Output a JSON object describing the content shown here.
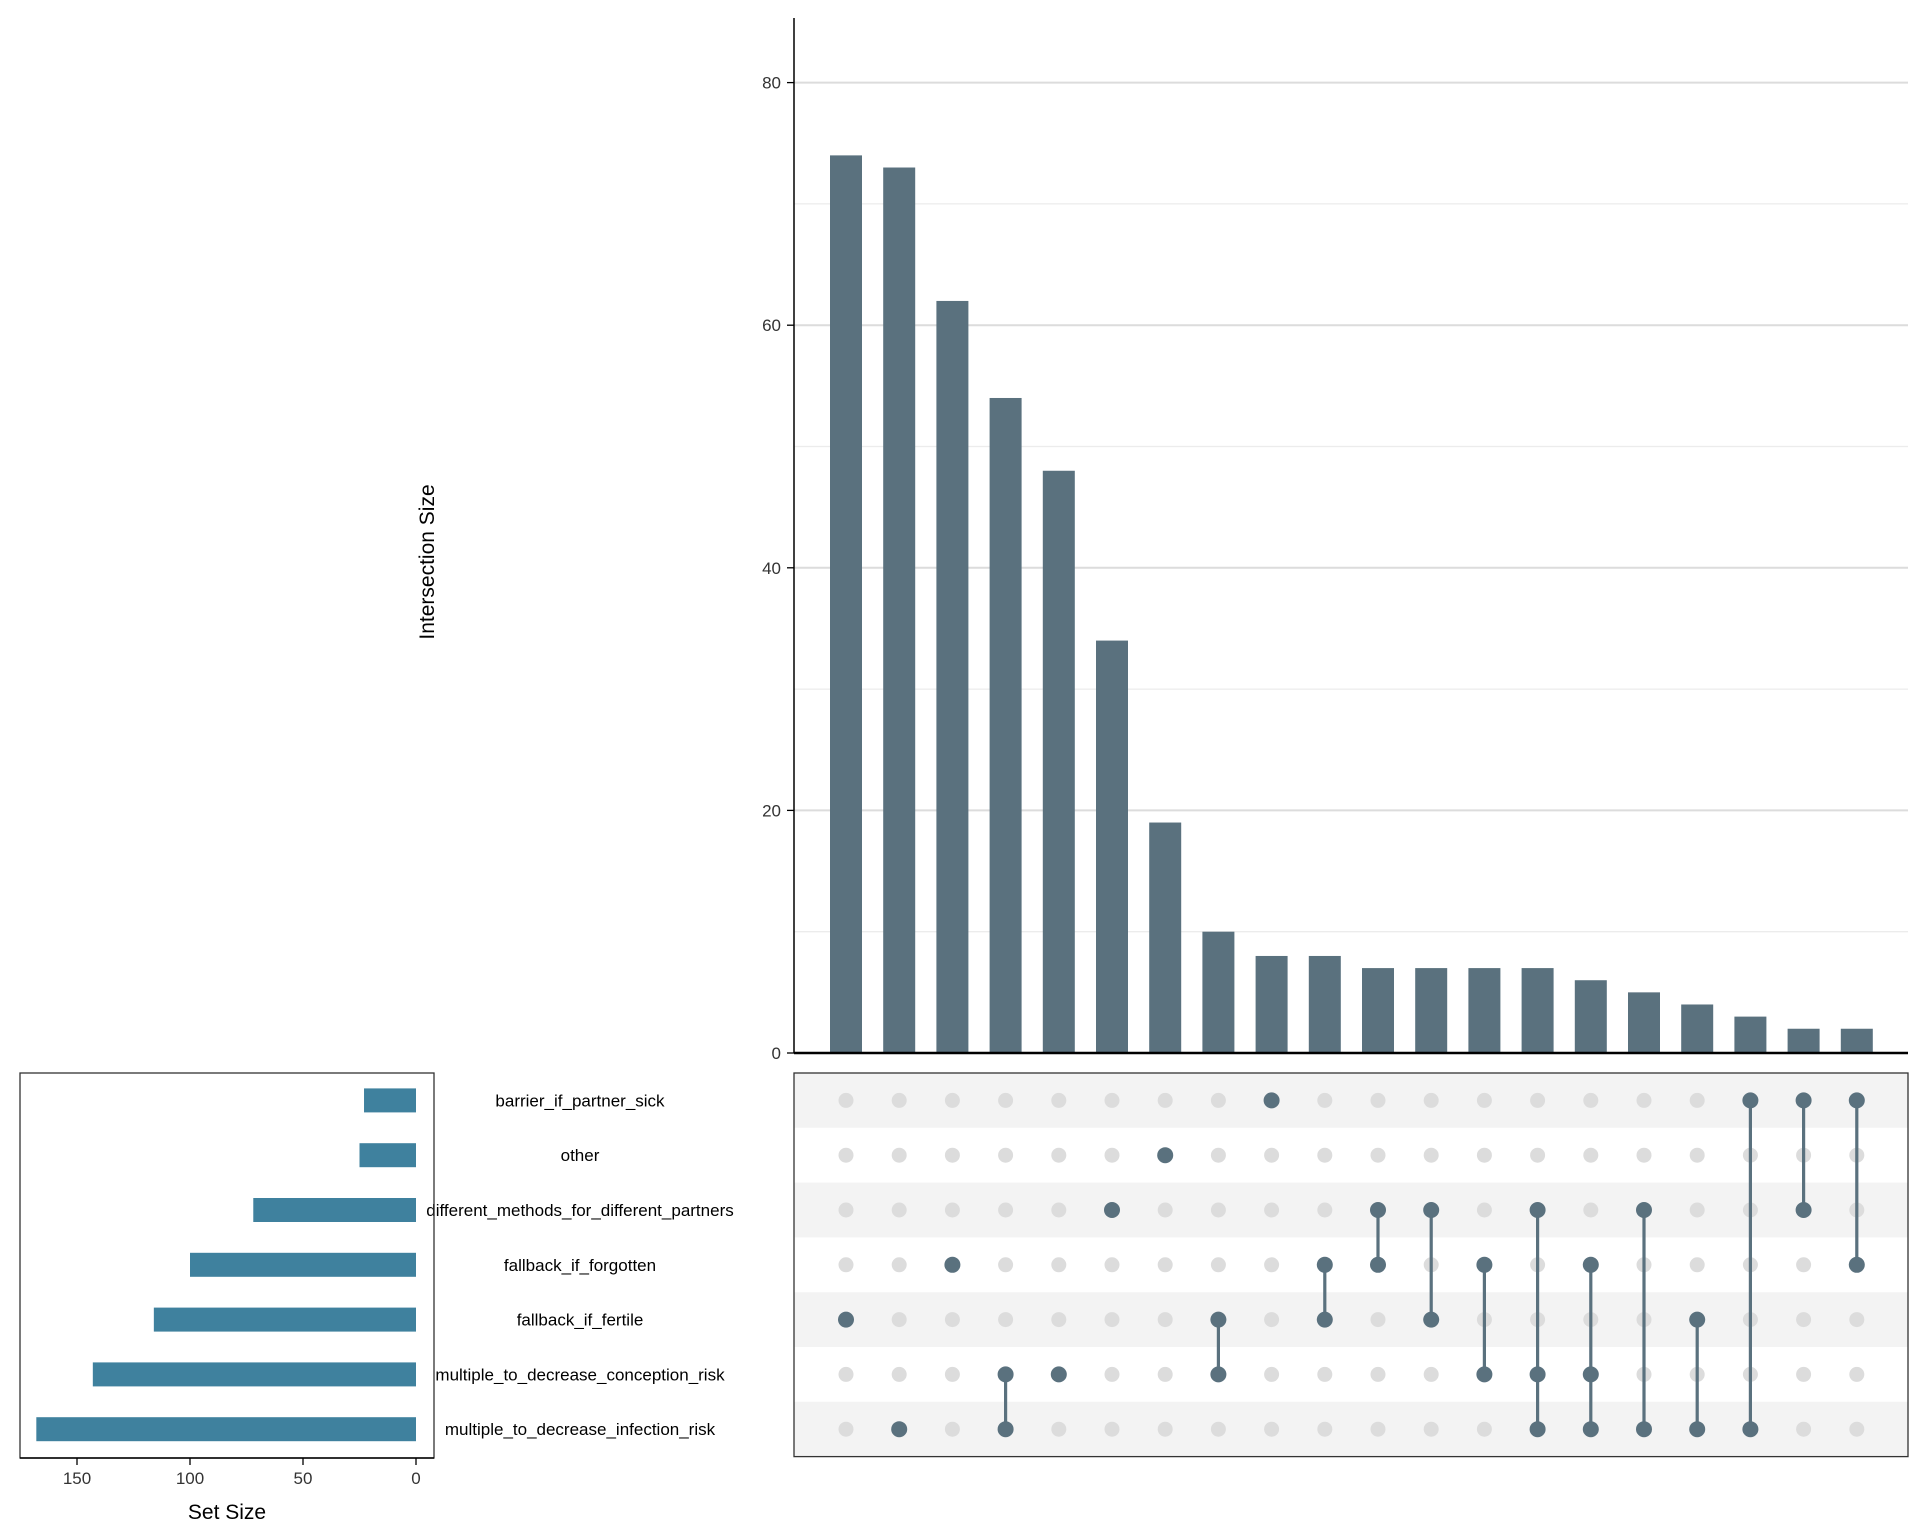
{
  "chart_data": {
    "type": "upset",
    "bar_color": "#5a717e",
    "set_bar_color": "#3f819e",
    "dot_inactive_color": "#dcdcdc",
    "stripe_color": "#f3f3f3",
    "intersection_axis": {
      "label": "Intersection Size",
      "ylim": [
        0,
        85
      ],
      "ticks": [
        0,
        20,
        40,
        60,
        80
      ],
      "grid": true
    },
    "set_size_axis": {
      "label": "Set Size",
      "xlim": [
        0,
        175
      ],
      "ticks": [
        150,
        100,
        50,
        0
      ],
      "reversed": true
    },
    "sets": [
      {
        "name": "barrier_if_partner_sick",
        "size": 23
      },
      {
        "name": "other",
        "size": 25
      },
      {
        "name": "different_methods_for_different_partners",
        "size": 72
      },
      {
        "name": "fallback_if_forgotten",
        "size": 100
      },
      {
        "name": "fallback_if_fertile",
        "size": 116
      },
      {
        "name": "multiple_to_decrease_conception_risk",
        "size": 143
      },
      {
        "name": "multiple_to_decrease_infection_risk",
        "size": 168
      }
    ],
    "intersections": [
      {
        "size": 74,
        "members": [
          "fallback_if_fertile"
        ]
      },
      {
        "size": 73,
        "members": [
          "multiple_to_decrease_infection_risk"
        ]
      },
      {
        "size": 62,
        "members": [
          "fallback_if_forgotten"
        ]
      },
      {
        "size": 54,
        "members": [
          "multiple_to_decrease_conception_risk",
          "multiple_to_decrease_infection_risk"
        ]
      },
      {
        "size": 48,
        "members": [
          "multiple_to_decrease_conception_risk"
        ]
      },
      {
        "size": 34,
        "members": [
          "different_methods_for_different_partners"
        ]
      },
      {
        "size": 19,
        "members": [
          "other"
        ]
      },
      {
        "size": 10,
        "members": [
          "fallback_if_fertile",
          "multiple_to_decrease_conception_risk"
        ]
      },
      {
        "size": 8,
        "members": [
          "barrier_if_partner_sick"
        ]
      },
      {
        "size": 8,
        "members": [
          "fallback_if_forgotten",
          "fallback_if_fertile"
        ]
      },
      {
        "size": 7,
        "members": [
          "different_methods_for_different_partners",
          "fallback_if_forgotten"
        ]
      },
      {
        "size": 7,
        "members": [
          "different_methods_for_different_partners",
          "fallback_if_fertile"
        ]
      },
      {
        "size": 7,
        "members": [
          "fallback_if_forgotten",
          "multiple_to_decrease_conception_risk"
        ]
      },
      {
        "size": 7,
        "members": [
          "different_methods_for_different_partners",
          "multiple_to_decrease_conception_risk",
          "multiple_to_decrease_infection_risk"
        ]
      },
      {
        "size": 6,
        "members": [
          "fallback_if_forgotten",
          "multiple_to_decrease_conception_risk",
          "multiple_to_decrease_infection_risk"
        ]
      },
      {
        "size": 5,
        "members": [
          "different_methods_for_different_partners",
          "multiple_to_decrease_infection_risk"
        ]
      },
      {
        "size": 4,
        "members": [
          "fallback_if_fertile",
          "multiple_to_decrease_infection_risk"
        ]
      },
      {
        "size": 3,
        "members": [
          "barrier_if_partner_sick",
          "multiple_to_decrease_infection_risk"
        ]
      },
      {
        "size": 2,
        "members": [
          "barrier_if_partner_sick",
          "different_methods_for_different_partners"
        ]
      },
      {
        "size": 2,
        "members": [
          "barrier_if_partner_sick",
          "fallback_if_forgotten"
        ]
      }
    ]
  }
}
